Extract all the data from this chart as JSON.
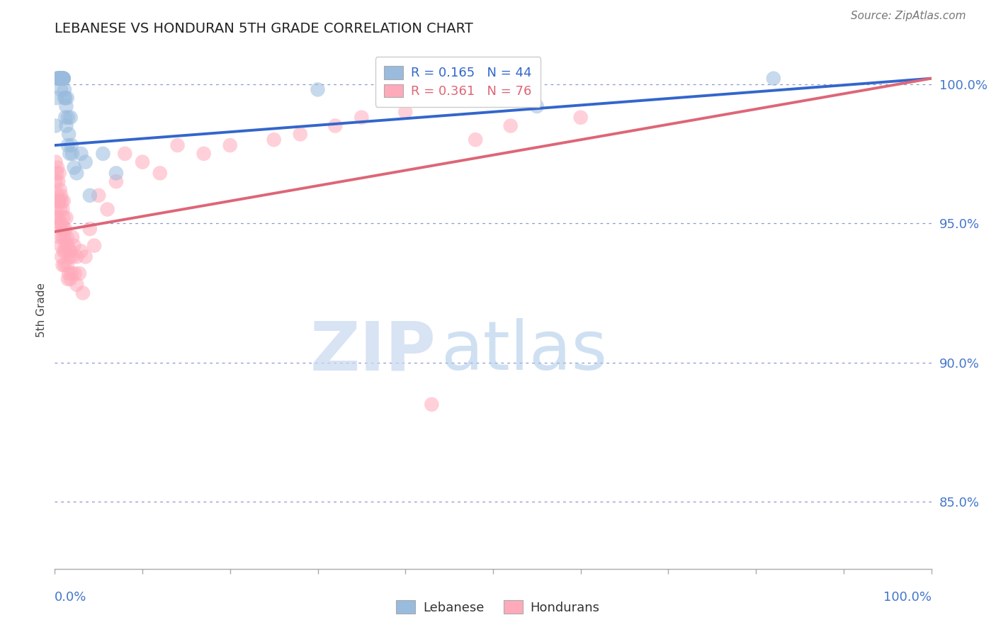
{
  "title": "LEBANESE VS HONDURAN 5TH GRADE CORRELATION CHART",
  "source": "Source: ZipAtlas.com",
  "ylabel": "5th Grade",
  "r_blue": 0.165,
  "n_blue": 44,
  "r_pink": 0.361,
  "n_pink": 76,
  "blue_color": "#99bbdd",
  "pink_color": "#ffaabb",
  "blue_line_color": "#3366cc",
  "pink_line_color": "#dd6677",
  "ytick_labels": [
    "85.0%",
    "90.0%",
    "95.0%",
    "100.0%"
  ],
  "ytick_values": [
    0.85,
    0.9,
    0.95,
    1.0
  ],
  "xlim": [
    0.0,
    1.0
  ],
  "ylim": [
    0.826,
    1.012
  ],
  "blue_line_x0": 0.0,
  "blue_line_y0": 0.978,
  "blue_line_x1": 1.0,
  "blue_line_y1": 1.002,
  "pink_line_x0": 0.0,
  "pink_line_y0": 0.947,
  "pink_line_x1": 1.0,
  "pink_line_y1": 1.002,
  "blue_x": [
    0.001,
    0.002,
    0.003,
    0.003,
    0.004,
    0.004,
    0.005,
    0.005,
    0.006,
    0.006,
    0.007,
    0.007,
    0.008,
    0.008,
    0.009,
    0.009,
    0.009,
    0.01,
    0.01,
    0.01,
    0.011,
    0.011,
    0.012,
    0.012,
    0.013,
    0.013,
    0.014,
    0.015,
    0.015,
    0.016,
    0.017,
    0.018,
    0.019,
    0.02,
    0.022,
    0.025,
    0.03,
    0.035,
    0.04,
    0.055,
    0.07,
    0.3,
    0.55,
    0.82
  ],
  "blue_y": [
    0.985,
    0.995,
    1.002,
    1.002,
    1.002,
    1.002,
    1.002,
    1.002,
    1.002,
    1.002,
    1.002,
    0.998,
    1.002,
    1.002,
    1.002,
    1.002,
    1.002,
    1.002,
    1.002,
    1.002,
    0.995,
    0.998,
    0.988,
    0.995,
    0.992,
    0.985,
    0.995,
    0.988,
    0.978,
    0.982,
    0.975,
    0.988,
    0.978,
    0.975,
    0.97,
    0.968,
    0.975,
    0.972,
    0.96,
    0.975,
    0.968,
    0.998,
    0.992,
    1.002
  ],
  "pink_x": [
    0.001,
    0.001,
    0.002,
    0.002,
    0.003,
    0.003,
    0.003,
    0.004,
    0.004,
    0.004,
    0.005,
    0.005,
    0.005,
    0.005,
    0.006,
    0.006,
    0.006,
    0.007,
    0.007,
    0.007,
    0.008,
    0.008,
    0.008,
    0.009,
    0.009,
    0.009,
    0.01,
    0.01,
    0.01,
    0.01,
    0.011,
    0.011,
    0.012,
    0.012,
    0.013,
    0.013,
    0.014,
    0.014,
    0.015,
    0.015,
    0.016,
    0.016,
    0.017,
    0.018,
    0.018,
    0.019,
    0.02,
    0.02,
    0.022,
    0.023,
    0.025,
    0.025,
    0.028,
    0.03,
    0.032,
    0.035,
    0.04,
    0.045,
    0.05,
    0.06,
    0.07,
    0.08,
    0.1,
    0.12,
    0.14,
    0.17,
    0.2,
    0.25,
    0.28,
    0.32,
    0.35,
    0.4,
    0.43,
    0.48,
    0.52,
    0.6
  ],
  "pink_y": [
    0.972,
    0.965,
    0.968,
    0.955,
    0.97,
    0.96,
    0.952,
    0.965,
    0.958,
    0.952,
    0.968,
    0.958,
    0.95,
    0.958,
    0.962,
    0.955,
    0.945,
    0.96,
    0.95,
    0.942,
    0.958,
    0.948,
    0.938,
    0.955,
    0.945,
    0.935,
    0.958,
    0.948,
    0.94,
    0.952,
    0.945,
    0.935,
    0.948,
    0.94,
    0.952,
    0.942,
    0.945,
    0.935,
    0.942,
    0.93,
    0.94,
    0.932,
    0.938,
    0.93,
    0.94,
    0.932,
    0.945,
    0.938,
    0.942,
    0.932,
    0.928,
    0.938,
    0.932,
    0.94,
    0.925,
    0.938,
    0.948,
    0.942,
    0.96,
    0.955,
    0.965,
    0.975,
    0.972,
    0.968,
    0.978,
    0.975,
    0.978,
    0.98,
    0.982,
    0.985,
    0.988,
    0.99,
    0.885,
    0.98,
    0.985,
    0.988
  ],
  "watermark_zip": "ZIP",
  "watermark_atlas": "atlas",
  "background_color": "#ffffff",
  "grid_color": "#8899cc",
  "tick_label_color": "#4477cc",
  "axis_color": "#aaaaaa"
}
